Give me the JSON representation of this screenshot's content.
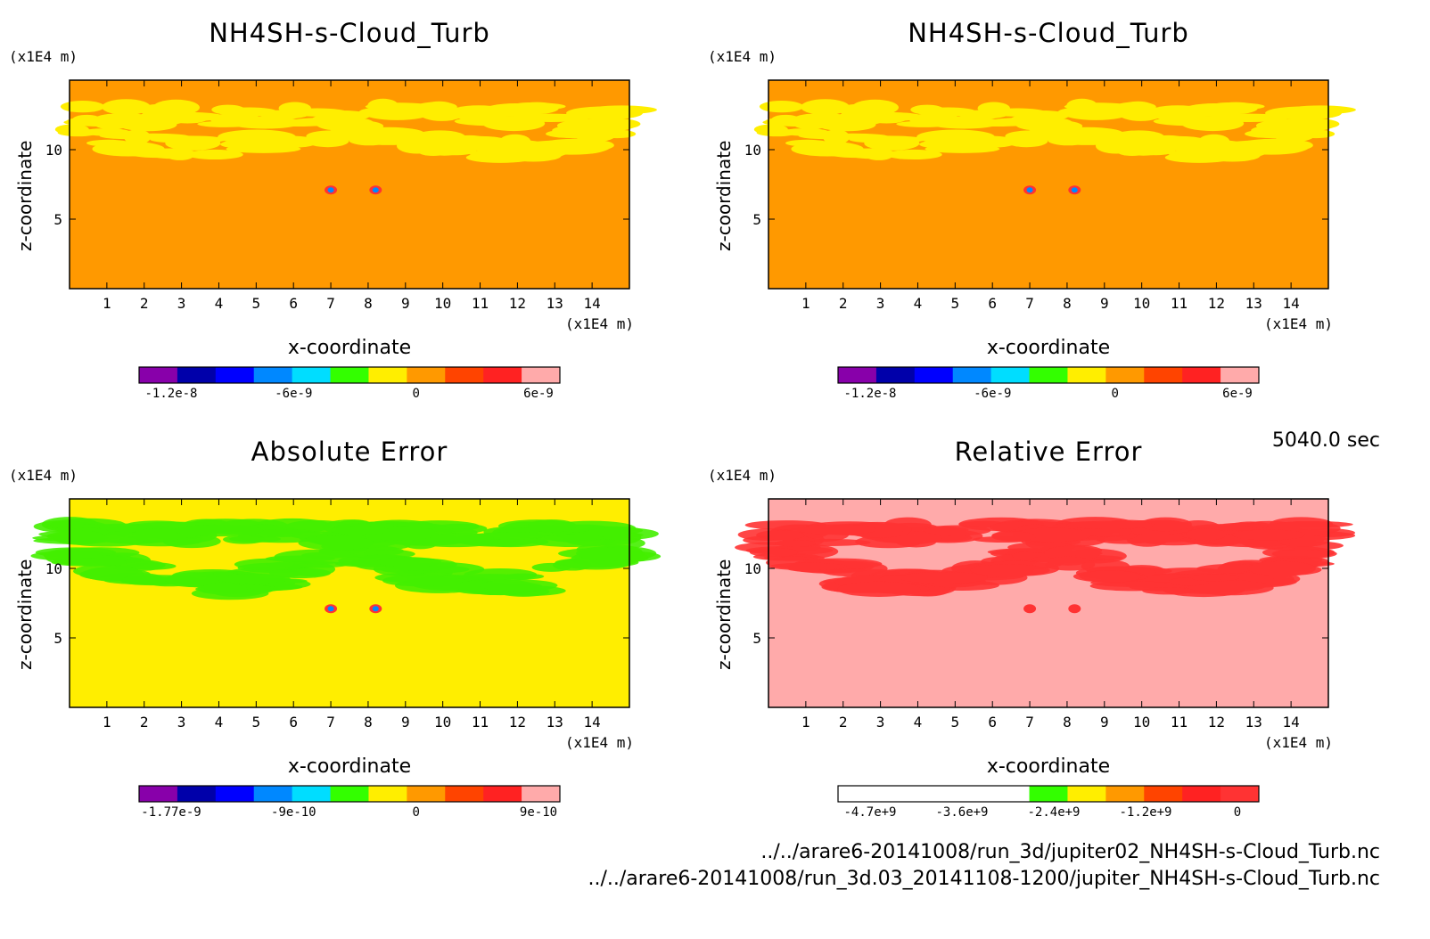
{
  "time_label": "5040.0 sec",
  "files": [
    "../../arare6-20141008/run_3d/jupiter02_NH4SH-s-Cloud_Turb.nc",
    "../../arare6-20141008/run_3d.03_20141108-1200/jupiter_NH4SH-s-Cloud_Turb.nc"
  ],
  "chart_data": [
    {
      "type": "heatmap",
      "title": "NH4SH-s-Cloud_Turb",
      "xlabel": "x-coordinate",
      "ylabel": "z-coordinate",
      "x_unit": "(x1E4 m)",
      "y_unit": "(x1E4 m)",
      "xlim": [
        0,
        15
      ],
      "ylim": [
        0,
        15
      ],
      "x_ticks": [
        "1",
        "2",
        "3",
        "4",
        "5",
        "6",
        "7",
        "8",
        "9",
        "10",
        "11",
        "12",
        "13",
        "14"
      ],
      "y_ticks": [
        "5",
        "10"
      ],
      "background_color": "#ff9900",
      "feature_color": "#ffee00",
      "colorbar": {
        "colors": [
          "#8800aa",
          "#0000aa",
          "#0000ff",
          "#0088ff",
          "#00ddff",
          "#33ff00",
          "#ffee00",
          "#ff9900",
          "#ff4400",
          "#ff2222",
          "#ffaaaa"
        ],
        "ticks": [
          "-1.2e-8",
          "-6e-9",
          "0",
          "6e-9"
        ]
      }
    },
    {
      "type": "heatmap",
      "title": "NH4SH-s-Cloud_Turb",
      "xlabel": "x-coordinate",
      "ylabel": "z-coordinate",
      "x_unit": "(x1E4 m)",
      "y_unit": "(x1E4 m)",
      "xlim": [
        0,
        15
      ],
      "ylim": [
        0,
        15
      ],
      "x_ticks": [
        "1",
        "2",
        "3",
        "4",
        "5",
        "6",
        "7",
        "8",
        "9",
        "10",
        "11",
        "12",
        "13",
        "14"
      ],
      "y_ticks": [
        "5",
        "10"
      ],
      "background_color": "#ff9900",
      "feature_color": "#ffee00",
      "colorbar": {
        "colors": [
          "#8800aa",
          "#0000aa",
          "#0000ff",
          "#0088ff",
          "#00ddff",
          "#33ff00",
          "#ffee00",
          "#ff9900",
          "#ff4400",
          "#ff2222",
          "#ffaaaa"
        ],
        "ticks": [
          "-1.2e-8",
          "-6e-9",
          "0",
          "6e-9"
        ]
      }
    },
    {
      "type": "heatmap",
      "title": "Absolute Error",
      "xlabel": "x-coordinate",
      "ylabel": "z-coordinate",
      "x_unit": "(x1E4 m)",
      "y_unit": "(x1E4 m)",
      "xlim": [
        0,
        15
      ],
      "ylim": [
        0,
        15
      ],
      "x_ticks": [
        "1",
        "2",
        "3",
        "4",
        "5",
        "6",
        "7",
        "8",
        "9",
        "10",
        "11",
        "12",
        "13",
        "14"
      ],
      "y_ticks": [
        "5",
        "10"
      ],
      "background_color": "#ffee00",
      "feature_color": "#44ee00",
      "colorbar": {
        "colors": [
          "#8800aa",
          "#0000aa",
          "#0000ff",
          "#0088ff",
          "#00ddff",
          "#33ff00",
          "#ffee00",
          "#ff9900",
          "#ff4400",
          "#ff2222",
          "#ffaaaa"
        ],
        "ticks": [
          "-1.77e-9",
          "-9e-10",
          "0",
          "9e-10"
        ]
      }
    },
    {
      "type": "heatmap",
      "title": "Relative Error",
      "xlabel": "x-coordinate",
      "ylabel": "z-coordinate",
      "x_unit": "(x1E4 m)",
      "y_unit": "(x1E4 m)",
      "xlim": [
        0,
        15
      ],
      "ylim": [
        0,
        15
      ],
      "x_ticks": [
        "1",
        "2",
        "3",
        "4",
        "5",
        "6",
        "7",
        "8",
        "9",
        "10",
        "11",
        "12",
        "13",
        "14"
      ],
      "y_ticks": [
        "5",
        "10"
      ],
      "background_color": "#ffaaaa",
      "feature_color": "#ff3333",
      "colorbar": {
        "colors": [
          "#ffffff",
          "#ffffff",
          "#ffffff",
          "#ffffff",
          "#ffffff",
          "#33ff00",
          "#ffee00",
          "#ff9900",
          "#ff4400",
          "#ff2222",
          "#ff3333"
        ],
        "ticks": [
          "-4.7e+9",
          "-3.6e+9",
          "-2.4e+9",
          "-1.2e+9",
          "0"
        ]
      }
    }
  ]
}
